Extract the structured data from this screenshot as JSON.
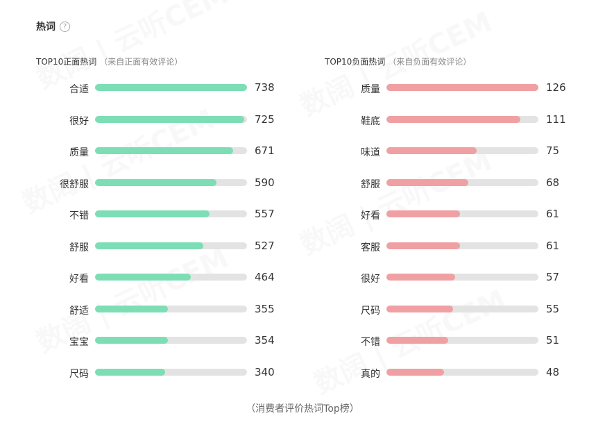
{
  "section": {
    "title": "热词",
    "help_icon": "question-circle-icon"
  },
  "chart_data": [
    {
      "type": "bar",
      "orientation": "horizontal",
      "title": "TOP10正面热词",
      "subtitle": "（来自正面有效评论）",
      "categories": [
        "合适",
        "很好",
        "质量",
        "很舒服",
        "不错",
        "舒服",
        "好看",
        "舒适",
        "宝宝",
        "尺码"
      ],
      "values": [
        738,
        725,
        671,
        590,
        557,
        527,
        464,
        355,
        354,
        340
      ],
      "xlim": [
        0,
        738
      ],
      "color": "#7ddeb5",
      "track_color": "#e3e3e3"
    },
    {
      "type": "bar",
      "orientation": "horizontal",
      "title": "TOP10负面热词",
      "subtitle": "（来自负面有效评论）",
      "categories": [
        "质量",
        "鞋底",
        "味道",
        "舒服",
        "好看",
        "客服",
        "很好",
        "尺码",
        "不错",
        "真的"
      ],
      "values": [
        126,
        111,
        75,
        68,
        61,
        61,
        57,
        55,
        51,
        48
      ],
      "xlim": [
        0,
        126
      ],
      "color": "#f0a0a3",
      "track_color": "#e3e3e3"
    }
  ],
  "watermark": "数阔 | 云听CEM",
  "caption": "（消费者评价热词Top榜）"
}
